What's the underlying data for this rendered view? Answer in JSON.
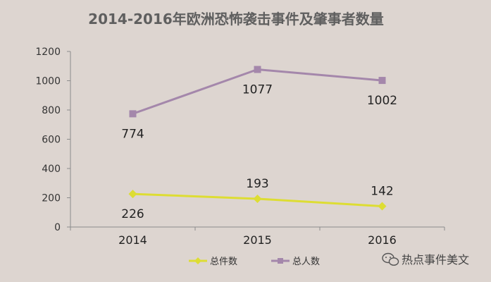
{
  "chart_data": {
    "type": "line",
    "title": "2014-2016年欧洲恐怖袭击事件及肇事者数量",
    "xlabel": "",
    "ylabel": "",
    "categories": [
      "2014",
      "2015",
      "2016"
    ],
    "ylim": [
      0,
      1200
    ],
    "yticks": [
      0,
      200,
      400,
      600,
      800,
      1000,
      1200
    ],
    "grid": false,
    "legend_position": "bottom",
    "series": [
      {
        "name": "总件数",
        "values": [
          226,
          193,
          142
        ],
        "color": "#dddd33",
        "marker": "diamond",
        "label_positions": [
          "below",
          "above",
          "above"
        ]
      },
      {
        "name": "总人数",
        "values": [
          774,
          1077,
          1002
        ],
        "color": "#a487ab",
        "marker": "square",
        "label_positions": [
          "below",
          "below",
          "below"
        ]
      }
    ]
  },
  "watermark": {
    "text": "热点事件美文",
    "icon": "wechat-icon"
  }
}
